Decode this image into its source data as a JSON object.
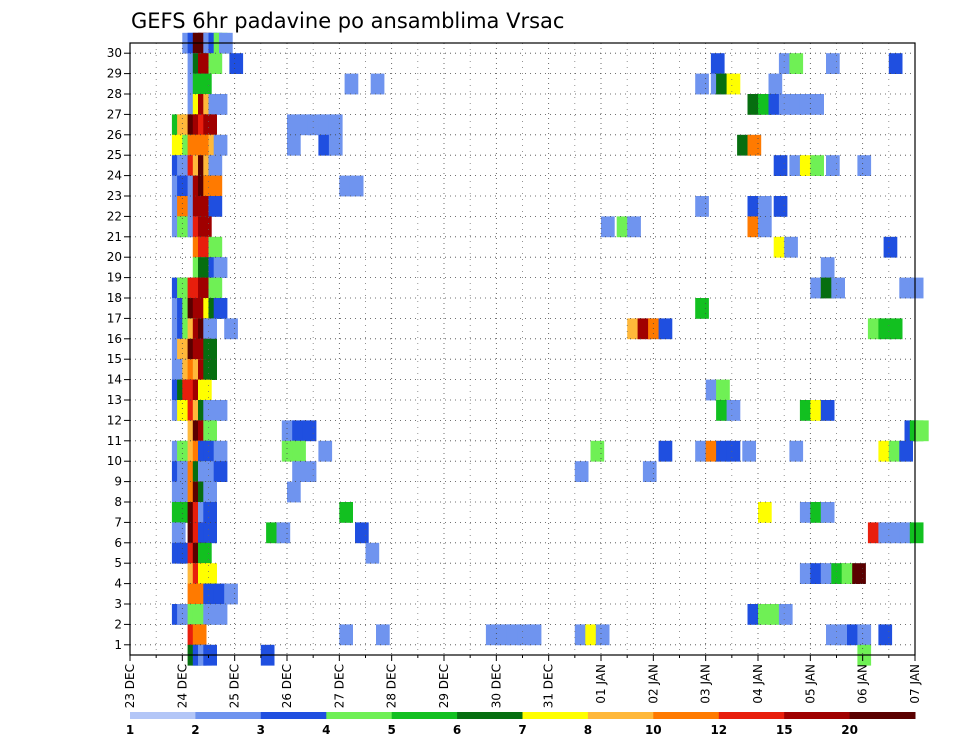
{
  "chart_data": {
    "type": "heatmap",
    "title": "GEFS 6hr padavine po ansamblima Vrsac",
    "x_ticks": [
      "23 DEC",
      "24 DEC",
      "25 DEC",
      "26 DEC",
      "27 DEC",
      "28 DEC",
      "29 DEC",
      "30 DEC",
      "31 DEC",
      "01 JAN",
      "02 JAN",
      "03 JAN",
      "04 JAN",
      "05 JAN",
      "06 JAN",
      "07 JAN"
    ],
    "y_ticks": [
      "1",
      "2",
      "3",
      "4",
      "5",
      "6",
      "7",
      "8",
      "9",
      "10",
      "11",
      "12",
      "13",
      "14",
      "15",
      "16",
      "17",
      "18",
      "19",
      "20",
      "21",
      "22",
      "23",
      "24",
      "25",
      "26",
      "27",
      "28",
      "29",
      "30"
    ],
    "xlim_days": [
      0,
      15
    ],
    "ylim": [
      0,
      30
    ],
    "grid": true,
    "colorbar": {
      "labels": [
        "1",
        "2",
        "3",
        "4",
        "5",
        "6",
        "7",
        "8",
        "10",
        "12",
        "15",
        "20"
      ],
      "colors": [
        "#b3c6f7",
        "#6f94ef",
        "#1f4fe0",
        "#6ff055",
        "#12c020",
        "#066e10",
        "#ffff00",
        "#ffb83a",
        "#ff7a00",
        "#e81e0c",
        "#a00000",
        "#5a0000"
      ]
    },
    "cells": [
      [
        1.0,
        30,
        1
      ],
      [
        1.1,
        30,
        2
      ],
      [
        1.2,
        30,
        11
      ],
      [
        1.3,
        30,
        11
      ],
      [
        1.4,
        30,
        1
      ],
      [
        1.5,
        30,
        2
      ],
      [
        1.6,
        30,
        3
      ],
      [
        1.7,
        30,
        1
      ],
      [
        1.1,
        29,
        1
      ],
      [
        1.2,
        29,
        5
      ],
      [
        1.3,
        29,
        10
      ],
      [
        1.5,
        29,
        3
      ],
      [
        1.9,
        29,
        2
      ],
      [
        11.1,
        29,
        2
      ],
      [
        12.4,
        29,
        1
      ],
      [
        12.6,
        29,
        3
      ],
      [
        13.3,
        29,
        1
      ],
      [
        14.5,
        29,
        2
      ],
      [
        1.1,
        28,
        1
      ],
      [
        1.2,
        28,
        4
      ],
      [
        1.3,
        28,
        4
      ],
      [
        4.1,
        28,
        1
      ],
      [
        4.6,
        28,
        1
      ],
      [
        10.8,
        28,
        1
      ],
      [
        11.1,
        28,
        1
      ],
      [
        11.2,
        28,
        5
      ],
      [
        11.4,
        28,
        6
      ],
      [
        12.2,
        28,
        1
      ],
      [
        1.1,
        27,
        1
      ],
      [
        1.2,
        27,
        6
      ],
      [
        1.3,
        27,
        10
      ],
      [
        1.4,
        27,
        7
      ],
      [
        1.5,
        27,
        1
      ],
      [
        1.6,
        27,
        1
      ],
      [
        11.8,
        27,
        5
      ],
      [
        12.0,
        27,
        4
      ],
      [
        12.2,
        27,
        2
      ],
      [
        12.4,
        27,
        1
      ],
      [
        12.6,
        27,
        1
      ],
      [
        12.8,
        27,
        1
      ],
      [
        13.0,
        27,
        1
      ],
      [
        0.8,
        26,
        4
      ],
      [
        0.9,
        26,
        7
      ],
      [
        1.0,
        26,
        7
      ],
      [
        1.1,
        26,
        11
      ],
      [
        1.2,
        26,
        10
      ],
      [
        1.3,
        26,
        9
      ],
      [
        1.4,
        26,
        10
      ],
      [
        3.0,
        26,
        1
      ],
      [
        3.2,
        26,
        1
      ],
      [
        3.4,
        26,
        1
      ],
      [
        3.6,
        26,
        1
      ],
      [
        3.8,
        26,
        1
      ],
      [
        0.8,
        25,
        6
      ],
      [
        0.9,
        25,
        6
      ],
      [
        1.0,
        25,
        3
      ],
      [
        1.1,
        25,
        8
      ],
      [
        1.2,
        25,
        8
      ],
      [
        1.3,
        25,
        8
      ],
      [
        1.4,
        25,
        8
      ],
      [
        1.5,
        25,
        7
      ],
      [
        1.6,
        25,
        1
      ],
      [
        3.0,
        25,
        1
      ],
      [
        3.6,
        25,
        2
      ],
      [
        3.8,
        25,
        1
      ],
      [
        11.6,
        25,
        5
      ],
      [
        11.8,
        25,
        8
      ],
      [
        0.8,
        24,
        2
      ],
      [
        0.9,
        24,
        1
      ],
      [
        1.0,
        24,
        1
      ],
      [
        1.1,
        24,
        9
      ],
      [
        1.2,
        24,
        7
      ],
      [
        1.3,
        24,
        11
      ],
      [
        1.4,
        24,
        7
      ],
      [
        1.5,
        24,
        1
      ],
      [
        12.3,
        24,
        2
      ],
      [
        12.6,
        24,
        1
      ],
      [
        12.8,
        24,
        6
      ],
      [
        13.0,
        24,
        3
      ],
      [
        13.3,
        24,
        1
      ],
      [
        13.9,
        24,
        1
      ],
      [
        0.8,
        23,
        1
      ],
      [
        0.9,
        23,
        2
      ],
      [
        1.1,
        23,
        1
      ],
      [
        1.2,
        23,
        10
      ],
      [
        1.3,
        23,
        11
      ],
      [
        1.4,
        23,
        8
      ],
      [
        1.5,
        23,
        8
      ],
      [
        4.0,
        23,
        1
      ],
      [
        4.2,
        23,
        1
      ],
      [
        0.8,
        22,
        1
      ],
      [
        0.9,
        22,
        8
      ],
      [
        1.1,
        22,
        1
      ],
      [
        1.2,
        22,
        10
      ],
      [
        1.3,
        22,
        10
      ],
      [
        1.5,
        22,
        2
      ],
      [
        10.8,
        22,
        1
      ],
      [
        11.8,
        22,
        2
      ],
      [
        12.0,
        22,
        1
      ],
      [
        12.3,
        22,
        2
      ],
      [
        0.8,
        21,
        1
      ],
      [
        0.9,
        21,
        3
      ],
      [
        1.1,
        21,
        1
      ],
      [
        1.2,
        21,
        9
      ],
      [
        1.3,
        21,
        10
      ],
      [
        9.0,
        21,
        1
      ],
      [
        9.3,
        21,
        3
      ],
      [
        9.5,
        21,
        1
      ],
      [
        11.8,
        21,
        8
      ],
      [
        12.0,
        21,
        1
      ],
      [
        1.2,
        20,
        8
      ],
      [
        1.3,
        20,
        9
      ],
      [
        1.5,
        20,
        3
      ],
      [
        12.3,
        20,
        6
      ],
      [
        12.5,
        20,
        1
      ],
      [
        14.4,
        20,
        2
      ],
      [
        1.2,
        19,
        3
      ],
      [
        1.3,
        19,
        5
      ],
      [
        1.5,
        19,
        2
      ],
      [
        1.6,
        19,
        1
      ],
      [
        13.2,
        19,
        1
      ],
      [
        0.8,
        18,
        2
      ],
      [
        0.9,
        18,
        3
      ],
      [
        1.0,
        18,
        3
      ],
      [
        1.1,
        18,
        9
      ],
      [
        1.2,
        18,
        9
      ],
      [
        1.3,
        18,
        10
      ],
      [
        1.5,
        18,
        3
      ],
      [
        13.0,
        18,
        1
      ],
      [
        13.2,
        18,
        5
      ],
      [
        13.4,
        18,
        1
      ],
      [
        14.7,
        18,
        1
      ],
      [
        14.9,
        18,
        1
      ],
      [
        0.8,
        17,
        1
      ],
      [
        0.9,
        17,
        2
      ],
      [
        1.0,
        17,
        3
      ],
      [
        1.1,
        17,
        11
      ],
      [
        1.2,
        17,
        10
      ],
      [
        1.3,
        17,
        10
      ],
      [
        1.4,
        17,
        6
      ],
      [
        1.5,
        17,
        5
      ],
      [
        1.6,
        17,
        2
      ],
      [
        10.8,
        17,
        4
      ],
      [
        0.8,
        16,
        1
      ],
      [
        0.9,
        16,
        2
      ],
      [
        1.0,
        16,
        3
      ],
      [
        1.1,
        16,
        7
      ],
      [
        1.2,
        16,
        10
      ],
      [
        1.3,
        16,
        11
      ],
      [
        1.4,
        16,
        1
      ],
      [
        1.8,
        16,
        1
      ],
      [
        9.5,
        16,
        7
      ],
      [
        9.7,
        16,
        10
      ],
      [
        9.9,
        16,
        8
      ],
      [
        10.1,
        16,
        2
      ],
      [
        14.1,
        16,
        3
      ],
      [
        14.3,
        16,
        4
      ],
      [
        14.5,
        16,
        4
      ],
      [
        0.8,
        15,
        1
      ],
      [
        0.9,
        15,
        7
      ],
      [
        1.0,
        15,
        7
      ],
      [
        1.1,
        15,
        11
      ],
      [
        1.2,
        15,
        10
      ],
      [
        1.3,
        15,
        10
      ],
      [
        1.4,
        15,
        5
      ],
      [
        0.8,
        14,
        1
      ],
      [
        0.9,
        14,
        1
      ],
      [
        1.0,
        14,
        7
      ],
      [
        1.1,
        14,
        8
      ],
      [
        1.2,
        14,
        7
      ],
      [
        1.3,
        14,
        10
      ],
      [
        1.4,
        14,
        5
      ],
      [
        0.8,
        13,
        2
      ],
      [
        0.9,
        13,
        5
      ],
      [
        1.0,
        13,
        9
      ],
      [
        1.1,
        13,
        9
      ],
      [
        1.2,
        13,
        10
      ],
      [
        1.3,
        13,
        6
      ],
      [
        11.0,
        13,
        1
      ],
      [
        11.2,
        13,
        3
      ],
      [
        0.8,
        12,
        1
      ],
      [
        0.9,
        12,
        6
      ],
      [
        1.0,
        12,
        6
      ],
      [
        1.1,
        12,
        9
      ],
      [
        1.2,
        12,
        7
      ],
      [
        1.3,
        12,
        5
      ],
      [
        1.4,
        12,
        1
      ],
      [
        1.5,
        12,
        1
      ],
      [
        1.6,
        12,
        1
      ],
      [
        11.2,
        12,
        4
      ],
      [
        11.4,
        12,
        1
      ],
      [
        12.8,
        12,
        4
      ],
      [
        13.0,
        12,
        6
      ],
      [
        13.2,
        12,
        2
      ],
      [
        1.1,
        11,
        7
      ],
      [
        1.2,
        11,
        11
      ],
      [
        1.3,
        11,
        10
      ],
      [
        1.4,
        11,
        3
      ],
      [
        2.9,
        11,
        1
      ],
      [
        3.1,
        11,
        2
      ],
      [
        3.3,
        11,
        2
      ],
      [
        14.8,
        11,
        2
      ],
      [
        14.9,
        11,
        4
      ],
      [
        15.0,
        11,
        3
      ],
      [
        0.8,
        10,
        1
      ],
      [
        0.9,
        10,
        3
      ],
      [
        1.1,
        10,
        7
      ],
      [
        1.2,
        10,
        8
      ],
      [
        1.3,
        10,
        2
      ],
      [
        1.4,
        10,
        2
      ],
      [
        1.6,
        10,
        1
      ],
      [
        2.9,
        10,
        3
      ],
      [
        3.1,
        10,
        3
      ],
      [
        3.6,
        10,
        1
      ],
      [
        8.8,
        10,
        3
      ],
      [
        10.1,
        10,
        2
      ],
      [
        10.8,
        10,
        1
      ],
      [
        11.0,
        10,
        8
      ],
      [
        11.2,
        10,
        2
      ],
      [
        11.4,
        10,
        2
      ],
      [
        11.7,
        10,
        1
      ],
      [
        12.6,
        10,
        1
      ],
      [
        14.3,
        10,
        6
      ],
      [
        14.5,
        10,
        3
      ],
      [
        14.7,
        10,
        2
      ],
      [
        0.8,
        9,
        2
      ],
      [
        0.9,
        9,
        1
      ],
      [
        1.1,
        9,
        8
      ],
      [
        1.2,
        9,
        5
      ],
      [
        1.3,
        9,
        1
      ],
      [
        1.4,
        9,
        1
      ],
      [
        1.6,
        9,
        2
      ],
      [
        3.1,
        9,
        1
      ],
      [
        3.3,
        9,
        1
      ],
      [
        8.5,
        9,
        1
      ],
      [
        9.8,
        9,
        1
      ],
      [
        0.8,
        8,
        1
      ],
      [
        0.9,
        8,
        1
      ],
      [
        1.1,
        8,
        8
      ],
      [
        1.2,
        8,
        11
      ],
      [
        1.3,
        8,
        5
      ],
      [
        1.4,
        8,
        1
      ],
      [
        3.0,
        8,
        1
      ],
      [
        0.8,
        7,
        4
      ],
      [
        0.9,
        7,
        4
      ],
      [
        1.1,
        7,
        11
      ],
      [
        1.2,
        7,
        9
      ],
      [
        1.3,
        7,
        1
      ],
      [
        1.4,
        7,
        2
      ],
      [
        4.0,
        7,
        4
      ],
      [
        12.0,
        7,
        6
      ],
      [
        12.8,
        7,
        1
      ],
      [
        13.0,
        7,
        4
      ],
      [
        13.2,
        7,
        1
      ],
      [
        0.8,
        6,
        1
      ],
      [
        1.1,
        6,
        11
      ],
      [
        1.2,
        6,
        9
      ],
      [
        1.3,
        6,
        2
      ],
      [
        1.4,
        6,
        2
      ],
      [
        2.6,
        6,
        4
      ],
      [
        2.8,
        6,
        1
      ],
      [
        4.3,
        6,
        2
      ],
      [
        14.1,
        6,
        9
      ],
      [
        14.3,
        6,
        1
      ],
      [
        14.5,
        6,
        1
      ],
      [
        14.7,
        6,
        1
      ],
      [
        14.9,
        6,
        4
      ],
      [
        0.8,
        5,
        2
      ],
      [
        0.9,
        5,
        2
      ],
      [
        1.1,
        5,
        9
      ],
      [
        1.2,
        5,
        11
      ],
      [
        1.3,
        5,
        4
      ],
      [
        4.5,
        5,
        1
      ],
      [
        1.1,
        4,
        7
      ],
      [
        1.2,
        4,
        9
      ],
      [
        1.3,
        4,
        6
      ],
      [
        1.4,
        4,
        6
      ],
      [
        12.8,
        4,
        1
      ],
      [
        13.0,
        4,
        2
      ],
      [
        13.2,
        4,
        1
      ],
      [
        13.4,
        4,
        4
      ],
      [
        13.6,
        4,
        3
      ],
      [
        13.8,
        4,
        11
      ],
      [
        1.1,
        3,
        8
      ],
      [
        1.2,
        3,
        8
      ],
      [
        1.3,
        3,
        8
      ],
      [
        1.4,
        3,
        2
      ],
      [
        1.6,
        3,
        2
      ],
      [
        1.8,
        3,
        1
      ],
      [
        0.8,
        2,
        2
      ],
      [
        0.9,
        2,
        1
      ],
      [
        1.1,
        2,
        3
      ],
      [
        1.2,
        2,
        3
      ],
      [
        1.3,
        2,
        3
      ],
      [
        1.4,
        2,
        1
      ],
      [
        1.6,
        2,
        1
      ],
      [
        11.8,
        2,
        2
      ],
      [
        12.0,
        2,
        3
      ],
      [
        12.2,
        2,
        3
      ],
      [
        12.4,
        2,
        1
      ],
      [
        1.1,
        1,
        9
      ],
      [
        1.2,
        1,
        8
      ],
      [
        4.0,
        1,
        1
      ],
      [
        4.7,
        1,
        1
      ],
      [
        6.8,
        1,
        1
      ],
      [
        7.0,
        1,
        1
      ],
      [
        7.2,
        1,
        1
      ],
      [
        7.4,
        1,
        1
      ],
      [
        7.6,
        1,
        1
      ],
      [
        8.5,
        1,
        1
      ],
      [
        8.7,
        1,
        6
      ],
      [
        8.9,
        1,
        1
      ],
      [
        13.3,
        1,
        1
      ],
      [
        13.5,
        1,
        1
      ],
      [
        13.7,
        1,
        2
      ],
      [
        13.9,
        1,
        1
      ],
      [
        14.3,
        1,
        2
      ],
      [
        1.1,
        0,
        5
      ],
      [
        1.2,
        0,
        2
      ],
      [
        1.3,
        0,
        1
      ],
      [
        1.4,
        0,
        2
      ],
      [
        2.5,
        0,
        2
      ],
      [
        13.9,
        0,
        3
      ]
    ]
  }
}
